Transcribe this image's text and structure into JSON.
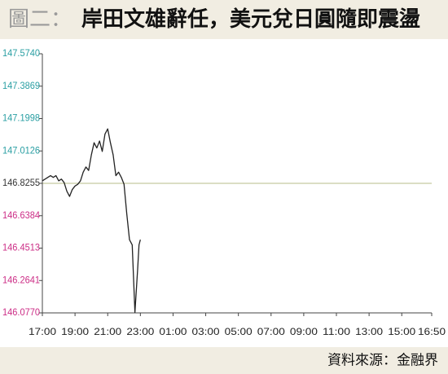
{
  "chart_data": {
    "type": "line",
    "figure_label": "圖二：",
    "title": "岸田文雄辭任，美元兌日圓隨即震盪",
    "source": "資料來源：金融界",
    "x": [
      "17:00",
      "17:10",
      "17:20",
      "17:30",
      "17:40",
      "17:50",
      "18:00",
      "18:10",
      "18:20",
      "18:30",
      "18:40",
      "18:50",
      "19:00",
      "19:10",
      "19:20",
      "19:30",
      "19:40",
      "19:50",
      "20:00",
      "20:10",
      "20:20",
      "20:30",
      "20:40",
      "20:50",
      "21:00",
      "21:10",
      "21:20",
      "21:30",
      "21:40",
      "21:50",
      "22:00",
      "22:10",
      "22:20",
      "22:30",
      "22:40",
      "22:50",
      "22:55",
      "23:00"
    ],
    "values": [
      146.84,
      146.85,
      146.86,
      146.87,
      146.86,
      146.87,
      146.84,
      146.85,
      146.83,
      146.78,
      146.75,
      146.79,
      146.81,
      146.82,
      146.84,
      146.89,
      146.92,
      146.9,
      146.99,
      147.06,
      147.03,
      147.07,
      147.01,
      147.11,
      147.14,
      147.06,
      146.99,
      146.87,
      146.89,
      146.86,
      146.82,
      146.65,
      146.5,
      146.47,
      146.08,
      146.33,
      146.47,
      146.5
    ],
    "color": "#222222",
    "ylim": [
      146.077,
      147.574
    ],
    "yticks": [
      {
        "value": 146.077,
        "label": "146.0770"
      },
      {
        "value": 146.2641,
        "label": "146.2641"
      },
      {
        "value": 146.4513,
        "label": "146.4513"
      },
      {
        "value": 146.6384,
        "label": "146.6384"
      },
      {
        "value": 146.8255,
        "label": "146.8255"
      },
      {
        "value": 147.0126,
        "label": "147.0126"
      },
      {
        "value": 147.1998,
        "label": "147.1998"
      },
      {
        "value": 147.3869,
        "label": "147.3869"
      },
      {
        "value": 147.574,
        "label": "147.5740"
      }
    ],
    "xticks": [
      "17:00",
      "19:00",
      "21:00",
      "23:00",
      "01:00",
      "03:00",
      "05:00",
      "07:00",
      "09:00",
      "11:00",
      "13:00",
      "15:00",
      "16:50"
    ],
    "reference": 146.8255,
    "reference_color": "#b7bd8a",
    "upper_color": "#2a9fa3",
    "lower_color": "#cc2d86",
    "middle_color": "#333333"
  }
}
